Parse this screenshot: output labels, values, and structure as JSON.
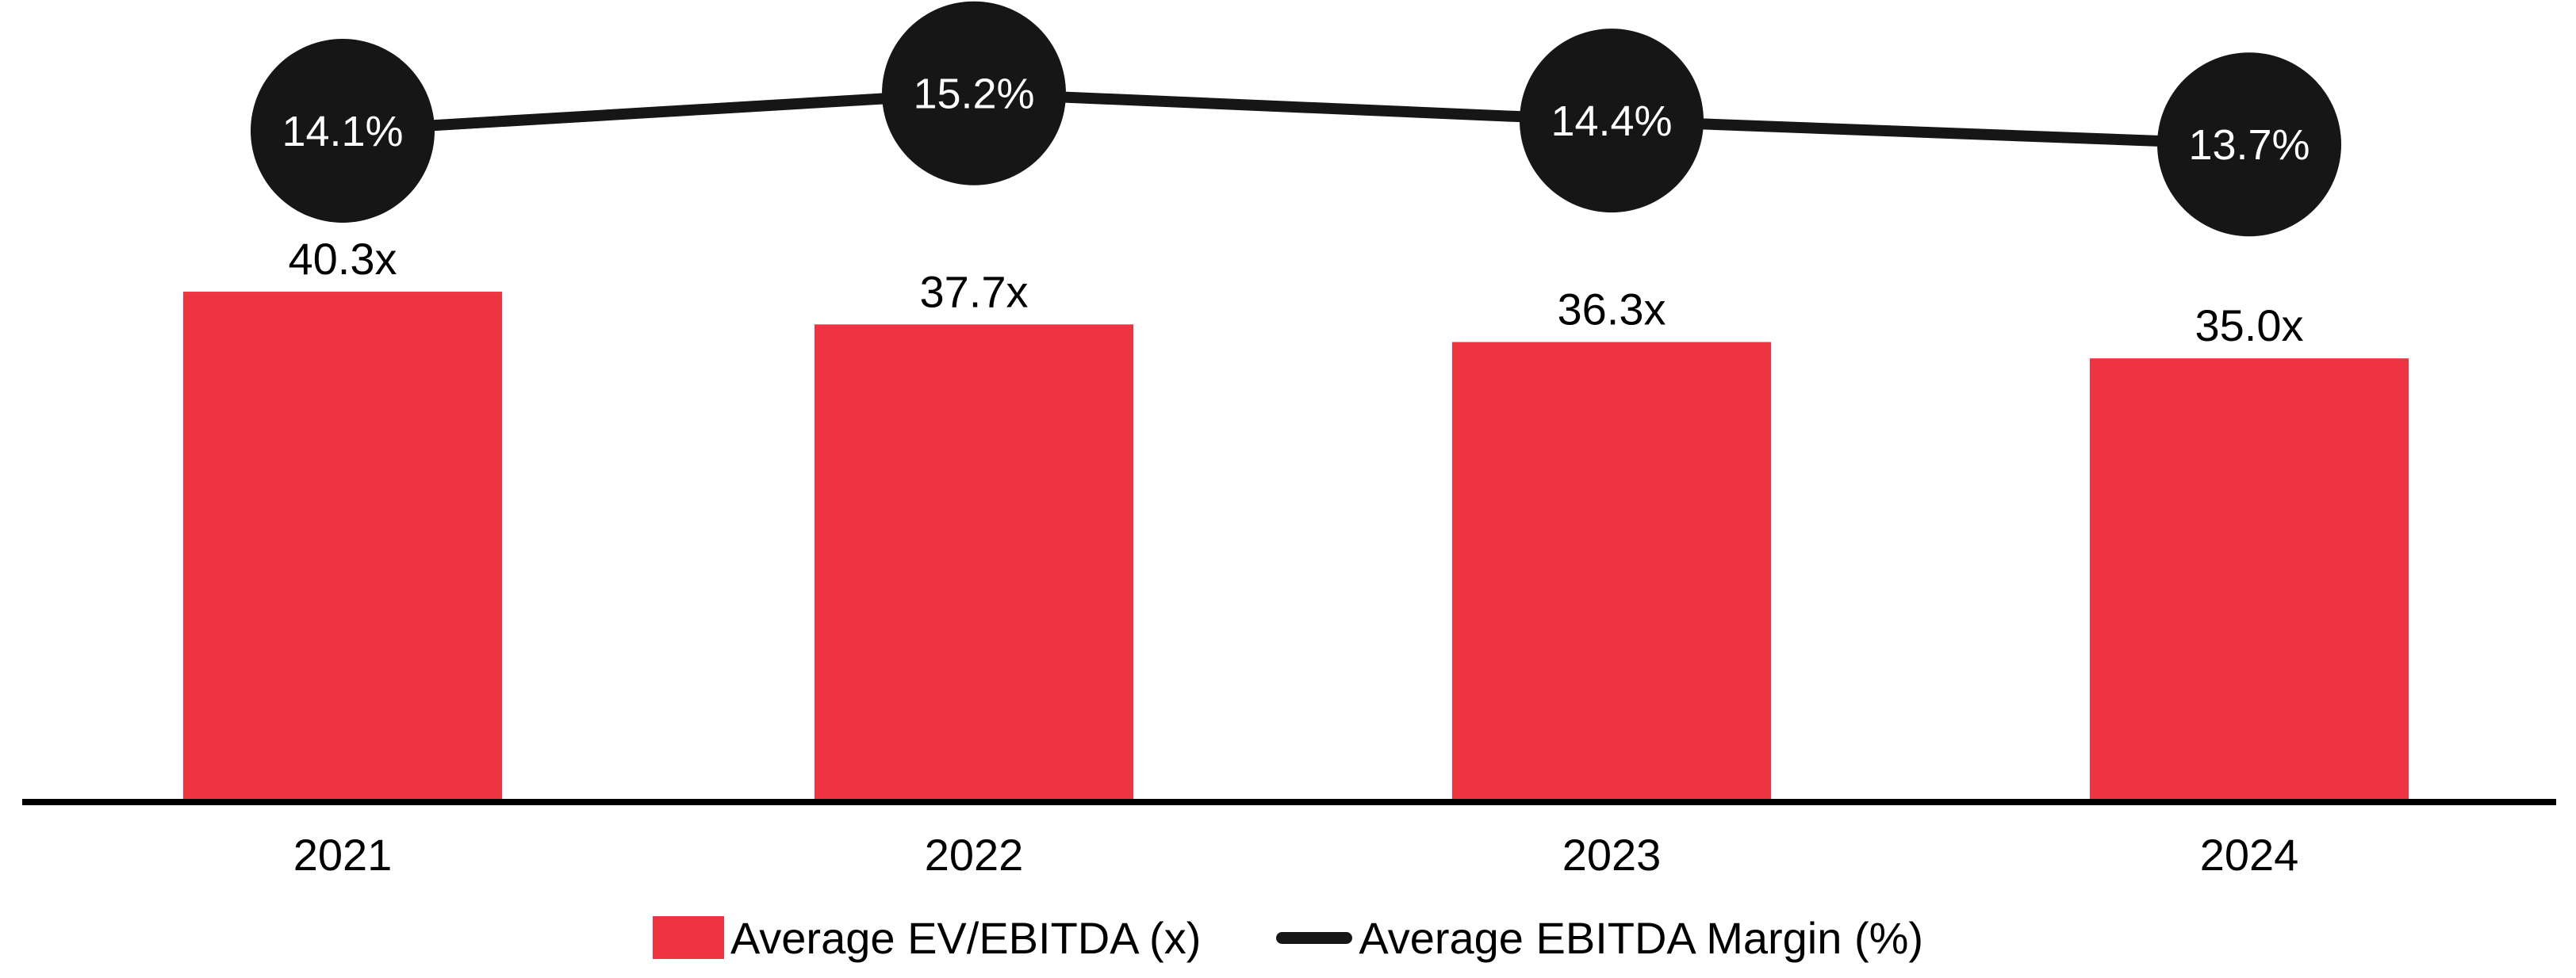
{
  "chart_data": {
    "type": "bar",
    "subtype": "combo-bar-line",
    "title": "",
    "xlabel": "",
    "ylabel": "",
    "grid": false,
    "legend_position": "bottom",
    "categories": [
      "2021",
      "2022",
      "2023",
      "2024"
    ],
    "series": [
      {
        "name": "Average EV/EBITDA (x)",
        "type": "bar",
        "values": [
          40.3,
          37.7,
          36.3,
          35.0
        ],
        "labels": [
          "40.3x",
          "37.7x",
          "36.3x",
          "35.0x"
        ],
        "color": "#EE3342"
      },
      {
        "name": "Average EBITDA Margin (%)",
        "type": "line",
        "values": [
          14.1,
          15.2,
          14.4,
          13.7
        ],
        "labels": [
          "14.1%",
          "15.2%",
          "14.4%",
          "13.7%"
        ],
        "color": "#161616",
        "marker": "filled-circle",
        "marker_label_color": "#FFFFFF"
      }
    ],
    "bar_axis_range": [
      0,
      45
    ],
    "line_axis_range": [
      12,
      17
    ]
  },
  "legend": {
    "items": [
      {
        "label": "Average EV/EBITDA (x)",
        "swatch": "red-rect",
        "color": "#EE3342"
      },
      {
        "label": "Average EBITDA Margin (%)",
        "swatch": "black-line",
        "color": "#161616"
      }
    ]
  },
  "colors": {
    "bar": "#EE3342",
    "line": "#161616",
    "marker": "#161616",
    "marker_text": "#FFFFFF",
    "axis": "#000000",
    "text": "#000000",
    "background": "#FFFFFF"
  }
}
